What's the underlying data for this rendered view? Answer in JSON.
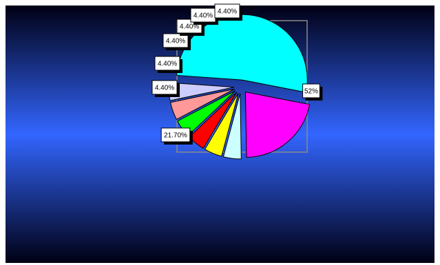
{
  "chart_data": {
    "type": "pie",
    "exploded": true,
    "background": {
      "top": "#000014",
      "mid": "#3366ff",
      "bottom": "#000014"
    },
    "plot_frame_color": "#8a8a8a",
    "slices": [
      {
        "value": 52.0,
        "label": "52%",
        "color": "#00ffff"
      },
      {
        "value": 21.7,
        "label": "21.70%",
        "color": "#ff00ff"
      },
      {
        "value": 4.4,
        "label": "4.40%",
        "color": "#ccffff"
      },
      {
        "value": 4.4,
        "label": "4.40%",
        "color": "#ffff00"
      },
      {
        "value": 4.4,
        "label": "4.40%",
        "color": "#ff0000"
      },
      {
        "value": 4.4,
        "label": "4.40%",
        "color": "#00ff00"
      },
      {
        "value": 4.4,
        "label": "4.40%",
        "color": "#ff9999"
      },
      {
        "value": 4.4,
        "label": "4.40%",
        "color": "#ccccff"
      }
    ]
  }
}
